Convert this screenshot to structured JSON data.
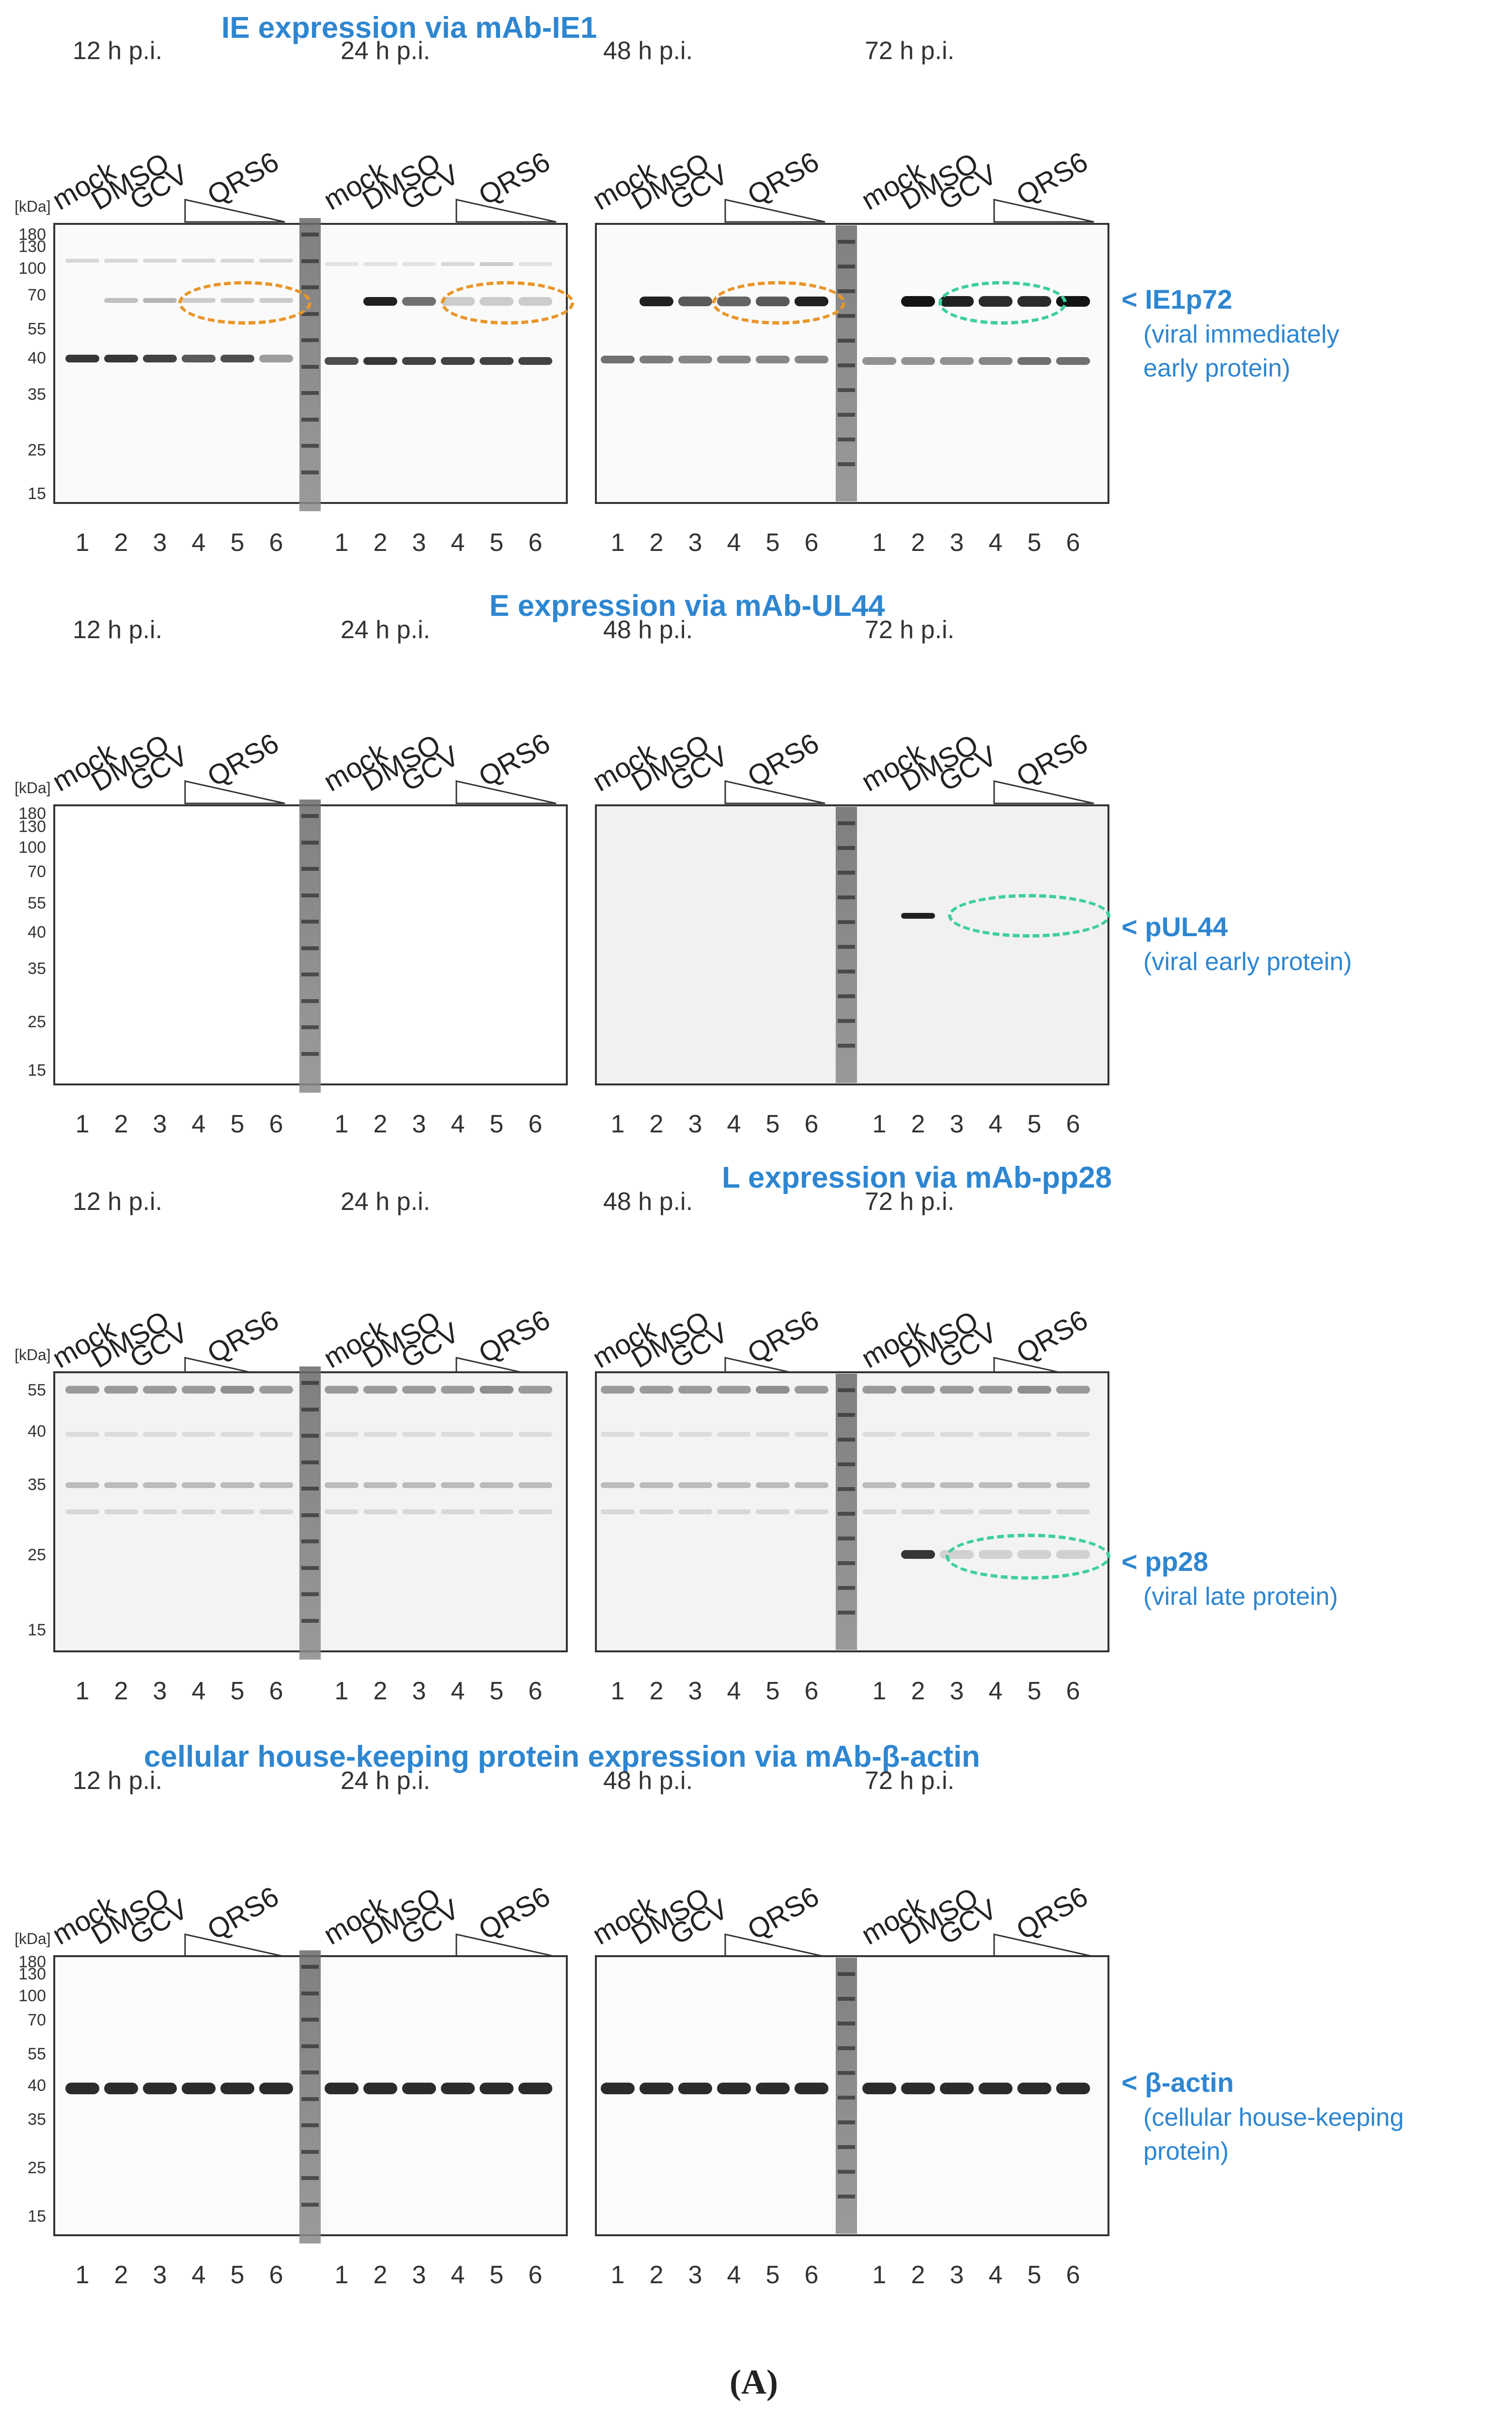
{
  "timepoints": [
    "12 h p.i.",
    "24 h p.i.",
    "48 h p.i.",
    "72 h p.i."
  ],
  "treatments": [
    "mock",
    "DMSO",
    "GCV",
    "QRS6"
  ],
  "lanes": [
    "1",
    "2",
    "3",
    "4",
    "5",
    "6"
  ],
  "kda_label": "[kDa]",
  "panels": [
    {
      "title": "IE expression via mAb-IE1",
      "markers": [
        "180",
        "130",
        "100",
        "70",
        "55",
        "40",
        "35",
        "25",
        "15"
      ],
      "annotation": {
        "name": "< IE1p72",
        "desc_lines": [
          "(viral immediately",
          "early protein)"
        ]
      }
    },
    {
      "title": "E expression via mAb-UL44",
      "markers": [
        "180",
        "130",
        "100",
        "70",
        "55",
        "40",
        "35",
        "25",
        "15"
      ],
      "annotation": {
        "name": "< pUL44",
        "desc_lines": [
          "(viral early protein)"
        ]
      }
    },
    {
      "title": "L expression via mAb-pp28",
      "markers": [
        "55",
        "40",
        "35",
        "25",
        "15"
      ],
      "annotation": {
        "name": "< pp28",
        "desc_lines": [
          "(viral late protein)"
        ]
      }
    },
    {
      "title": "cellular house-keeping protein expression via mAb-β-actin",
      "markers": [
        "180",
        "130",
        "100",
        "70",
        "55",
        "40",
        "35",
        "25",
        "15"
      ],
      "annotation": {
        "name": "< β-actin",
        "desc_lines": [
          "(cellular house-keeping",
          "protein)"
        ]
      }
    }
  ],
  "caption": "(A)",
  "colors": {
    "title_blue": "#2e86d1",
    "oval_orange": "#e8962a",
    "oval_green": "#3fcf9a"
  }
}
